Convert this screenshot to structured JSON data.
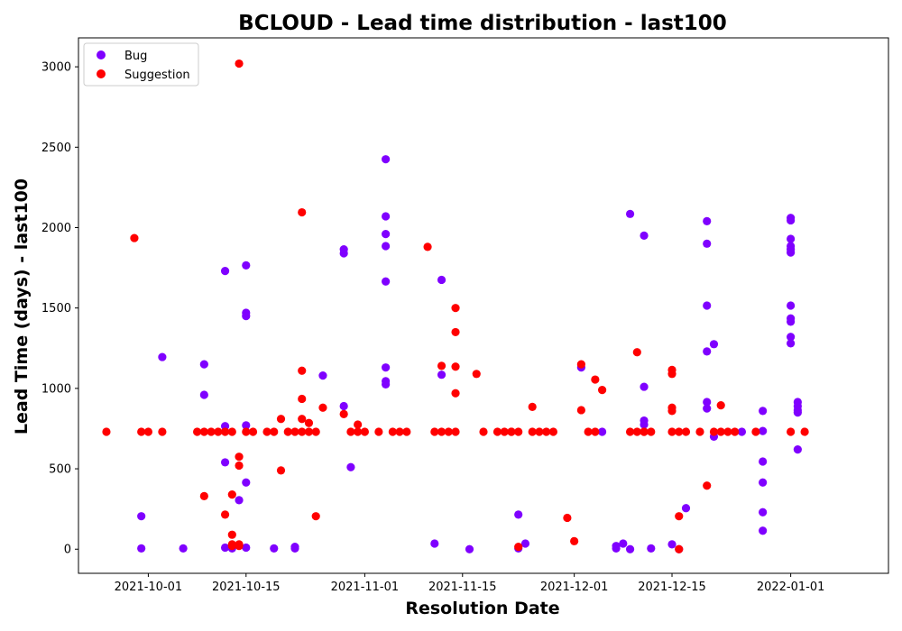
{
  "chart_data": {
    "type": "scatter",
    "title": "BCLOUD - Lead time distribution - last100",
    "xlabel": "Resolution Date",
    "ylabel": "Lead Time (days) - last100",
    "x_axis_type": "date",
    "xlim": [
      "2021-09-21",
      "2022-01-15"
    ],
    "xticks": [
      "2021-10-01",
      "2021-10-15",
      "2021-11-01",
      "2021-11-15",
      "2021-12-01",
      "2021-12-15",
      "2022-01-01"
    ],
    "ylim": [
      -150,
      3180
    ],
    "yticks": [
      0,
      500,
      1000,
      1500,
      2000,
      2500,
      3000
    ],
    "grid": false,
    "legend": "top-left",
    "series": [
      {
        "name": "Bug",
        "color": "#7f00ff",
        "points": [
          [
            "2021-09-30",
            205
          ],
          [
            "2021-09-30",
            5
          ],
          [
            "2021-10-03",
            1195
          ],
          [
            "2021-10-06",
            5
          ],
          [
            "2021-10-09",
            1150
          ],
          [
            "2021-10-09",
            960
          ],
          [
            "2021-10-12",
            1730
          ],
          [
            "2021-10-12",
            765
          ],
          [
            "2021-10-12",
            540
          ],
          [
            "2021-10-12",
            10
          ],
          [
            "2021-10-13",
            5
          ],
          [
            "2021-10-14",
            305
          ],
          [
            "2021-10-15",
            1765
          ],
          [
            "2021-10-15",
            1470
          ],
          [
            "2021-10-15",
            1450
          ],
          [
            "2021-10-15",
            770
          ],
          [
            "2021-10-15",
            415
          ],
          [
            "2021-10-15",
            10
          ],
          [
            "2021-10-19",
            5
          ],
          [
            "2021-10-22",
            15
          ],
          [
            "2021-10-22",
            5
          ],
          [
            "2021-10-26",
            1080
          ],
          [
            "2021-10-29",
            1865
          ],
          [
            "2021-10-29",
            1840
          ],
          [
            "2021-10-29",
            890
          ],
          [
            "2021-10-30",
            510
          ],
          [
            "2021-11-04",
            2425
          ],
          [
            "2021-11-04",
            2070
          ],
          [
            "2021-11-04",
            1960
          ],
          [
            "2021-11-04",
            1885
          ],
          [
            "2021-11-04",
            1665
          ],
          [
            "2021-11-04",
            1130
          ],
          [
            "2021-11-04",
            1045
          ],
          [
            "2021-11-04",
            1025
          ],
          [
            "2021-11-11",
            35
          ],
          [
            "2021-11-12",
            1675
          ],
          [
            "2021-11-12",
            1085
          ],
          [
            "2021-11-16",
            0
          ],
          [
            "2021-11-23",
            215
          ],
          [
            "2021-11-23",
            5
          ],
          [
            "2021-11-24",
            35
          ],
          [
            "2021-12-02",
            1130
          ],
          [
            "2021-12-05",
            730
          ],
          [
            "2021-12-07",
            5
          ],
          [
            "2021-12-07",
            20
          ],
          [
            "2021-12-08",
            35
          ],
          [
            "2021-12-09",
            0
          ],
          [
            "2021-12-09",
            2085
          ],
          [
            "2021-12-11",
            1950
          ],
          [
            "2021-12-11",
            1010
          ],
          [
            "2021-12-11",
            800
          ],
          [
            "2021-12-11",
            775
          ],
          [
            "2021-12-12",
            5
          ],
          [
            "2021-12-15",
            30
          ],
          [
            "2021-12-16",
            0
          ],
          [
            "2021-12-17",
            255
          ],
          [
            "2021-12-20",
            2040
          ],
          [
            "2021-12-20",
            1900
          ],
          [
            "2021-12-20",
            1515
          ],
          [
            "2021-12-20",
            1230
          ],
          [
            "2021-12-20",
            915
          ],
          [
            "2021-12-20",
            875
          ],
          [
            "2021-12-21",
            1275
          ],
          [
            "2021-12-21",
            700
          ],
          [
            "2021-12-25",
            730
          ],
          [
            "2021-12-28",
            860
          ],
          [
            "2021-12-28",
            735
          ],
          [
            "2021-12-28",
            545
          ],
          [
            "2021-12-28",
            415
          ],
          [
            "2021-12-28",
            230
          ],
          [
            "2021-12-28",
            115
          ],
          [
            "2022-01-01",
            2060
          ],
          [
            "2022-01-01",
            2045
          ],
          [
            "2022-01-01",
            1930
          ],
          [
            "2022-01-01",
            1885
          ],
          [
            "2022-01-01",
            1865
          ],
          [
            "2022-01-01",
            1845
          ],
          [
            "2022-01-01",
            1515
          ],
          [
            "2022-01-01",
            1435
          ],
          [
            "2022-01-01",
            1415
          ],
          [
            "2022-01-01",
            1320
          ],
          [
            "2022-01-01",
            1280
          ],
          [
            "2022-01-02",
            915
          ],
          [
            "2022-01-02",
            890
          ],
          [
            "2022-01-02",
            865
          ],
          [
            "2022-01-02",
            850
          ],
          [
            "2022-01-02",
            620
          ]
        ]
      },
      {
        "name": "Suggestion",
        "color": "#ff0000",
        "points": [
          [
            "2021-09-25",
            730
          ],
          [
            "2021-09-29",
            1935
          ],
          [
            "2021-09-30",
            730
          ],
          [
            "2021-10-01",
            730
          ],
          [
            "2021-10-03",
            730
          ],
          [
            "2021-10-08",
            730
          ],
          [
            "2021-10-09",
            730
          ],
          [
            "2021-10-09",
            330
          ],
          [
            "2021-10-10",
            730
          ],
          [
            "2021-10-11",
            730
          ],
          [
            "2021-10-12",
            730
          ],
          [
            "2021-10-12",
            215
          ],
          [
            "2021-10-13",
            730
          ],
          [
            "2021-10-13",
            340
          ],
          [
            "2021-10-13",
            90
          ],
          [
            "2021-10-13",
            30
          ],
          [
            "2021-10-13",
            20
          ],
          [
            "2021-10-14",
            575
          ],
          [
            "2021-10-14",
            30
          ],
          [
            "2021-10-14",
            20
          ],
          [
            "2021-10-14",
            520
          ],
          [
            "2021-10-14",
            3020
          ],
          [
            "2021-10-15",
            730
          ],
          [
            "2021-10-16",
            730
          ],
          [
            "2021-10-18",
            730
          ],
          [
            "2021-10-19",
            730
          ],
          [
            "2021-10-20",
            810
          ],
          [
            "2021-10-20",
            490
          ],
          [
            "2021-10-21",
            730
          ],
          [
            "2021-10-22",
            730
          ],
          [
            "2021-10-23",
            2095
          ],
          [
            "2021-10-23",
            1110
          ],
          [
            "2021-10-23",
            935
          ],
          [
            "2021-10-23",
            810
          ],
          [
            "2021-10-23",
            730
          ],
          [
            "2021-10-24",
            785
          ],
          [
            "2021-10-24",
            730
          ],
          [
            "2021-10-25",
            205
          ],
          [
            "2021-10-25",
            730
          ],
          [
            "2021-10-26",
            880
          ],
          [
            "2021-10-29",
            840
          ],
          [
            "2021-10-30",
            730
          ],
          [
            "2021-10-31",
            730
          ],
          [
            "2021-10-31",
            775
          ],
          [
            "2021-11-01",
            730
          ],
          [
            "2021-11-03",
            730
          ],
          [
            "2021-11-05",
            730
          ],
          [
            "2021-11-06",
            730
          ],
          [
            "2021-11-07",
            730
          ],
          [
            "2021-11-10",
            1880
          ],
          [
            "2021-11-11",
            730
          ],
          [
            "2021-11-12",
            1140
          ],
          [
            "2021-11-12",
            730
          ],
          [
            "2021-11-13",
            730
          ],
          [
            "2021-11-14",
            730
          ],
          [
            "2021-11-14",
            1500
          ],
          [
            "2021-11-14",
            1350
          ],
          [
            "2021-11-14",
            1135
          ],
          [
            "2021-11-14",
            970
          ],
          [
            "2021-11-17",
            1090
          ],
          [
            "2021-11-18",
            730
          ],
          [
            "2021-11-20",
            730
          ],
          [
            "2021-11-21",
            730
          ],
          [
            "2021-11-22",
            730
          ],
          [
            "2021-11-22",
            730
          ],
          [
            "2021-11-23",
            730
          ],
          [
            "2021-11-23",
            15
          ],
          [
            "2021-11-25",
            885
          ],
          [
            "2021-11-25",
            730
          ],
          [
            "2021-11-26",
            730
          ],
          [
            "2021-11-27",
            730
          ],
          [
            "2021-11-28",
            730
          ],
          [
            "2021-11-30",
            195
          ],
          [
            "2021-12-01",
            50
          ],
          [
            "2021-12-02",
            1150
          ],
          [
            "2021-12-02",
            865
          ],
          [
            "2021-12-03",
            730
          ],
          [
            "2021-12-04",
            1055
          ],
          [
            "2021-12-04",
            730
          ],
          [
            "2021-12-05",
            990
          ],
          [
            "2021-12-09",
            730
          ],
          [
            "2021-12-10",
            730
          ],
          [
            "2021-12-10",
            1225
          ],
          [
            "2021-12-11",
            730
          ],
          [
            "2021-12-11",
            730
          ],
          [
            "2021-12-12",
            730
          ],
          [
            "2021-12-15",
            1115
          ],
          [
            "2021-12-15",
            1090
          ],
          [
            "2021-12-15",
            880
          ],
          [
            "2021-12-15",
            860
          ],
          [
            "2021-12-15",
            730
          ],
          [
            "2021-12-16",
            730
          ],
          [
            "2021-12-16",
            205
          ],
          [
            "2021-12-16",
            0
          ],
          [
            "2021-12-17",
            730
          ],
          [
            "2021-12-19",
            730
          ],
          [
            "2021-12-20",
            395
          ],
          [
            "2021-12-21",
            730
          ],
          [
            "2021-12-22",
            895
          ],
          [
            "2021-12-22",
            730
          ],
          [
            "2021-12-23",
            730
          ],
          [
            "2021-12-24",
            730
          ],
          [
            "2021-12-27",
            730
          ],
          [
            "2022-01-01",
            730
          ],
          [
            "2022-01-03",
            730
          ]
        ]
      }
    ]
  }
}
